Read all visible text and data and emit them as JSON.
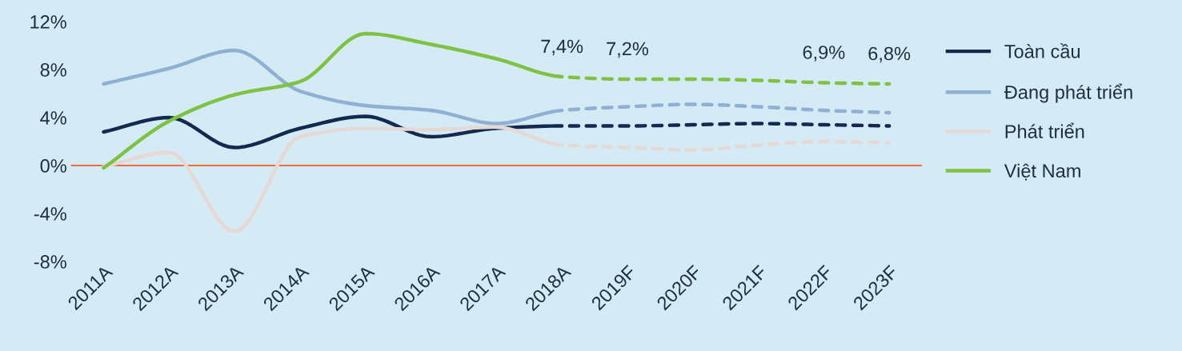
{
  "chart_data": {
    "type": "line",
    "categories": [
      "2011A",
      "2012A",
      "2013A",
      "2014A",
      "2015A",
      "2016A",
      "2017A",
      "2018A",
      "2019F",
      "2020F",
      "2021F",
      "2022F",
      "2023F"
    ],
    "series": [
      {
        "name": "Toàn cầu",
        "color": "#13294f",
        "line_style": [
          "solid",
          "solid",
          "solid",
          "solid",
          "solid",
          "solid",
          "solid",
          "dashed",
          "dashed",
          "dashed",
          "dashed",
          "dashed"
        ],
        "values": [
          2.8,
          4.0,
          1.5,
          3.1,
          4.1,
          2.4,
          3.1,
          3.3,
          3.3,
          3.4,
          3.5,
          3.4,
          3.3
        ]
      },
      {
        "name": "Đang phát triển",
        "color": "#8fb0d3",
        "line_style": [
          "solid",
          "solid",
          "solid",
          "solid",
          "solid",
          "solid",
          "solid",
          "dashed",
          "dashed",
          "dashed",
          "dashed",
          "dashed"
        ],
        "values": [
          6.8,
          8.1,
          9.6,
          6.2,
          5.0,
          4.6,
          3.5,
          4.6,
          4.9,
          5.1,
          4.9,
          4.6,
          4.4
        ]
      },
      {
        "name": "Phát triển",
        "color": "#e6d8d4",
        "line_style": [
          "solid",
          "solid",
          "solid",
          "solid",
          "solid",
          "solid",
          "solid",
          "dashed",
          "dashed",
          "dashed",
          "dashed",
          "dashed"
        ],
        "values": [
          -0.1,
          1.1,
          -5.5,
          2.4,
          3.1,
          3.0,
          3.2,
          1.7,
          1.5,
          1.3,
          1.7,
          2.0,
          1.9
        ]
      },
      {
        "name": "Việt Nam",
        "color": "#7dc242",
        "line_style": [
          "solid",
          "solid",
          "solid",
          "solid",
          "solid",
          "solid",
          "solid",
          "dashed",
          "dashed",
          "dashed",
          "dashed",
          "dashed"
        ],
        "values": [
          -0.2,
          3.7,
          5.9,
          7.0,
          11.0,
          10.1,
          8.9,
          7.4,
          7.2,
          7.2,
          7.1,
          6.9,
          6.8
        ],
        "value_labels": [
          null,
          null,
          null,
          null,
          null,
          null,
          null,
          "7,4%",
          "7,2%",
          null,
          null,
          "6,9%",
          "6,8%"
        ]
      }
    ],
    "ylim": [
      -8,
      12
    ],
    "yticks": [
      {
        "value": -8,
        "label": "-8%"
      },
      {
        "value": -4,
        "label": "-4%"
      },
      {
        "value": 0,
        "label": "0%"
      },
      {
        "value": 4,
        "label": "4%"
      },
      {
        "value": 8,
        "label": "8%"
      },
      {
        "value": 12,
        "label": "12%"
      }
    ],
    "ref_lines": [
      {
        "axis": "y",
        "value": 0,
        "color": "#f26b3a",
        "line_style": "solid"
      }
    ],
    "grid": false,
    "legend": "right",
    "marker": "none"
  }
}
